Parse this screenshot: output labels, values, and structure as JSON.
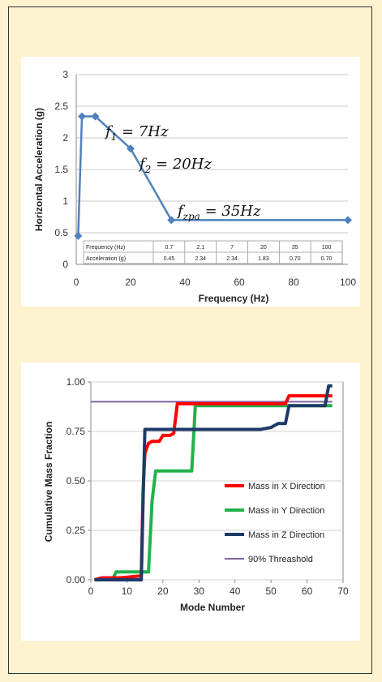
{
  "chart_data": [
    {
      "type": "line",
      "xlabel": "Frequency (Hz)",
      "ylabel": "Horizontal Acceleration (g)",
      "xlim": [
        0,
        100
      ],
      "ylim": [
        0,
        3
      ],
      "xticks": [
        "0",
        "20",
        "40",
        "60",
        "80",
        "100"
      ],
      "yticks": [
        "0",
        "0.5",
        "1",
        "1.5",
        "2",
        "2.5",
        "3"
      ],
      "grid": "horizontal",
      "series": [
        {
          "color": "#4f81bd",
          "x": [
            0.7,
            2.1,
            7,
            20,
            35,
            100
          ],
          "y": [
            0.45,
            2.34,
            2.34,
            1.83,
            0.7,
            0.7
          ]
        }
      ],
      "annotations": [
        {
          "base": "f",
          "sub": "1",
          "rest": " = 7Hz"
        },
        {
          "base": "f",
          "sub": "2",
          "rest": " = 20Hz"
        },
        {
          "base": "f",
          "sub": "zpa",
          "rest": " = 35Hz"
        }
      ],
      "table": {
        "rows": [
          {
            "label": "Frequency (Hz)",
            "values": [
              "0.7",
              "2.1",
              "7",
              "20",
              "35",
              "100"
            ]
          },
          {
            "label": "Acceleration (g)",
            "values": [
              "0.45",
              "2.34",
              "2.34",
              "1.83",
              "0.70",
              "0.70"
            ]
          }
        ]
      }
    },
    {
      "type": "line",
      "xlabel": "Mode Number",
      "ylabel": "Cumulative Mass Fraction",
      "xlim": [
        0,
        70
      ],
      "ylim": [
        0,
        1
      ],
      "xticks": [
        "0",
        "10",
        "20",
        "30",
        "40",
        "50",
        "60",
        "70"
      ],
      "yticks": [
        "0.00",
        "0.25",
        "0.50",
        "0.75",
        "1.00"
      ],
      "grid": "horizontal",
      "legend": "right",
      "series": [
        {
          "name": "Mass in X Direction",
          "color": "#ff0000",
          "x": [
            1,
            3,
            8,
            14,
            14.5,
            15,
            16,
            17,
            19,
            20,
            22,
            23,
            24,
            40,
            54,
            55,
            67
          ],
          "y": [
            0.0,
            0.01,
            0.01,
            0.02,
            0.45,
            0.64,
            0.69,
            0.7,
            0.7,
            0.73,
            0.73,
            0.74,
            0.89,
            0.89,
            0.89,
            0.93,
            0.93
          ]
        },
        {
          "name": "Mass in Y Direction",
          "color": "#22b24c",
          "x": [
            1,
            6,
            7,
            10,
            16,
            17,
            18,
            22,
            28,
            29,
            40,
            67
          ],
          "y": [
            0.0,
            0.0,
            0.04,
            0.04,
            0.04,
            0.4,
            0.55,
            0.55,
            0.55,
            0.88,
            0.88,
            0.88
          ]
        },
        {
          "name": "Mass in Z Direction",
          "color": "#1f3a68",
          "x": [
            1,
            3,
            14,
            14.5,
            15,
            20,
            47,
            50,
            51,
            52,
            53,
            54,
            55,
            65,
            66,
            67
          ],
          "y": [
            0.0,
            0.0,
            0.0,
            0.4,
            0.76,
            0.76,
            0.76,
            0.77,
            0.78,
            0.79,
            0.79,
            0.79,
            0.88,
            0.88,
            0.98,
            0.98
          ]
        },
        {
          "name": "90% Threashold",
          "color": "#8064a2",
          "x": [
            0,
            67
          ],
          "y": [
            0.9,
            0.9
          ]
        }
      ]
    }
  ]
}
